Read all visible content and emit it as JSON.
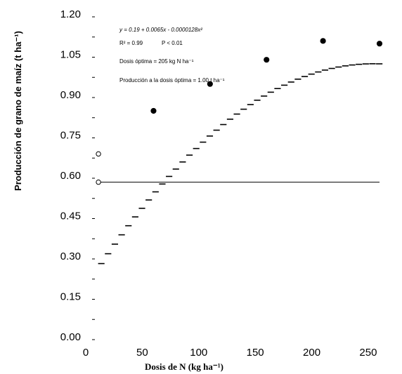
{
  "chart_data": {
    "type": "scatter",
    "xlabel": "Dosis de N (kg ha⁻¹)",
    "ylabel": "Producción de grano de maíz (t ha⁻¹)",
    "xlim": [
      0,
      260
    ],
    "ylim": [
      0,
      1.2
    ],
    "x_ticks": [
      "0",
      "50",
      "100",
      "150",
      "200",
      "250"
    ],
    "y_ticks": [
      "0.00",
      "0.15",
      "0.30",
      "0.45",
      "0.60",
      "0.75",
      "0.90",
      "1.05",
      "1.20"
    ],
    "grid": false,
    "series": [
      {
        "marker": "filled-circle",
        "x": [
          60,
          110,
          160,
          210,
          260
        ],
        "y": [
          0.84,
          0.94,
          1.03,
          1.1,
          1.09
        ]
      },
      {
        "marker": "open-circle",
        "x": [
          10,
          10
        ],
        "y": [
          0.68,
          0.575
        ]
      }
    ],
    "fit_curve": {
      "style": "dashed",
      "x_range": [
        10,
        260
      ],
      "a": 0.19,
      "b": 0.0065,
      "c": -1.28e-05
    },
    "reference_line": {
      "style": "solid",
      "y": 0.575,
      "x_range": [
        10,
        260
      ]
    },
    "annotations": {
      "equation": "y = 0.19 + 0.0065x - 0.0000128x²",
      "r2": "R² = 0.99",
      "p": "P < 0.01",
      "dose": "Dosis óptima = 205 kg N ha⁻¹",
      "yield": "Producción a la dosis óptima = 1.00 t ha⁻¹"
    }
  }
}
